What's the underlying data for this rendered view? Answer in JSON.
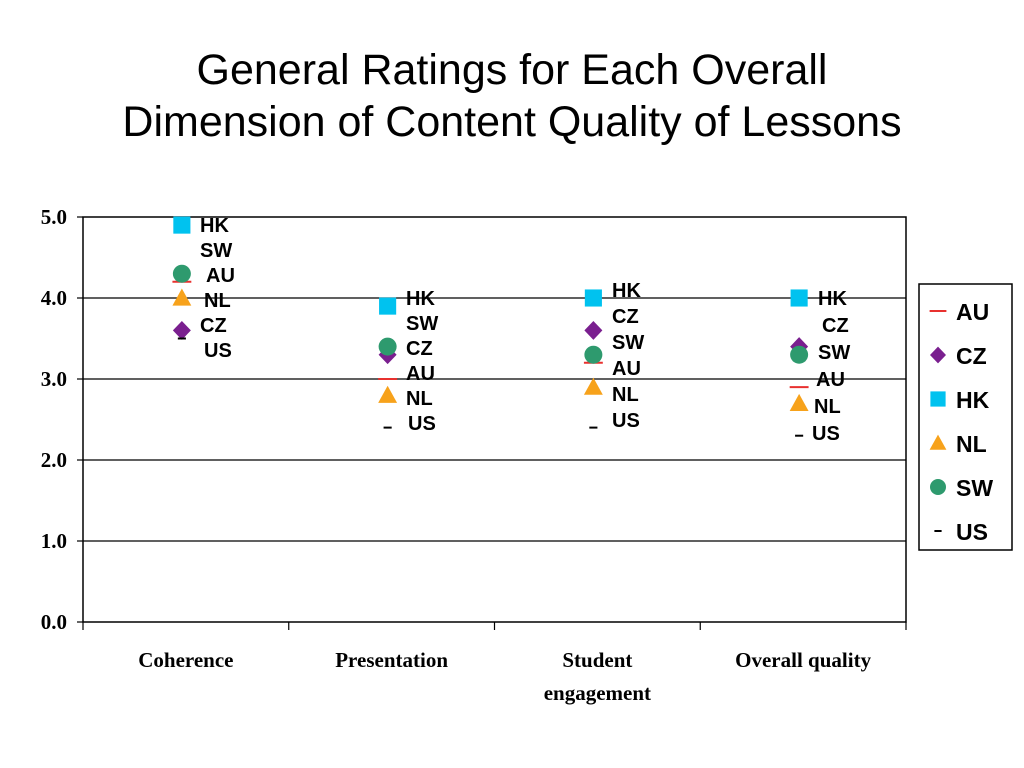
{
  "chart_data": {
    "type": "scatter",
    "title_lines": [
      "General Ratings for Each Overall",
      "Dimension of Content Quality of Lessons"
    ],
    "xlabel": "",
    "ylabel": "",
    "categories": [
      [
        "Coherence"
      ],
      [
        "Presentation"
      ],
      [
        "Student",
        "engagement"
      ],
      [
        "Overall quality"
      ]
    ],
    "ylim": [
      0,
      5
    ],
    "yticks": [
      "0.0",
      "1.0",
      "2.0",
      "3.0",
      "4.0",
      "5.0"
    ],
    "grid": true,
    "legend_position": "right",
    "series": [
      {
        "name": "AU",
        "marker": "dash",
        "color": "#e8312f",
        "values": [
          4.2,
          3.0,
          3.2,
          2.9
        ]
      },
      {
        "name": "CZ",
        "marker": "diamond",
        "color": "#7a1f8f",
        "values": [
          3.6,
          3.3,
          3.6,
          3.4
        ]
      },
      {
        "name": "HK",
        "marker": "square",
        "color": "#00c2ef",
        "values": [
          4.9,
          3.9,
          4.0,
          4.0
        ]
      },
      {
        "name": "NL",
        "marker": "triangle",
        "color": "#f7a21b",
        "values": [
          4.0,
          2.8,
          2.9,
          2.7
        ]
      },
      {
        "name": "SW",
        "marker": "circle",
        "color": "#2e9a6e",
        "values": [
          4.3,
          3.4,
          3.3,
          3.3
        ]
      },
      {
        "name": "US",
        "marker": "dash",
        "color": "#000000",
        "values": [
          3.5,
          2.4,
          2.4,
          2.3
        ]
      }
    ],
    "data_labels": [
      [
        "HK",
        "SW",
        "AU",
        "NL",
        "CZ",
        "US"
      ],
      [
        "HK",
        "SW",
        "CZ",
        "AU",
        "NL",
        "US"
      ],
      [
        "HK",
        "CZ",
        "SW",
        "AU",
        "NL",
        "US"
      ],
      [
        "HK",
        "CZ",
        "SW",
        "AU",
        "NL",
        "US"
      ]
    ]
  }
}
